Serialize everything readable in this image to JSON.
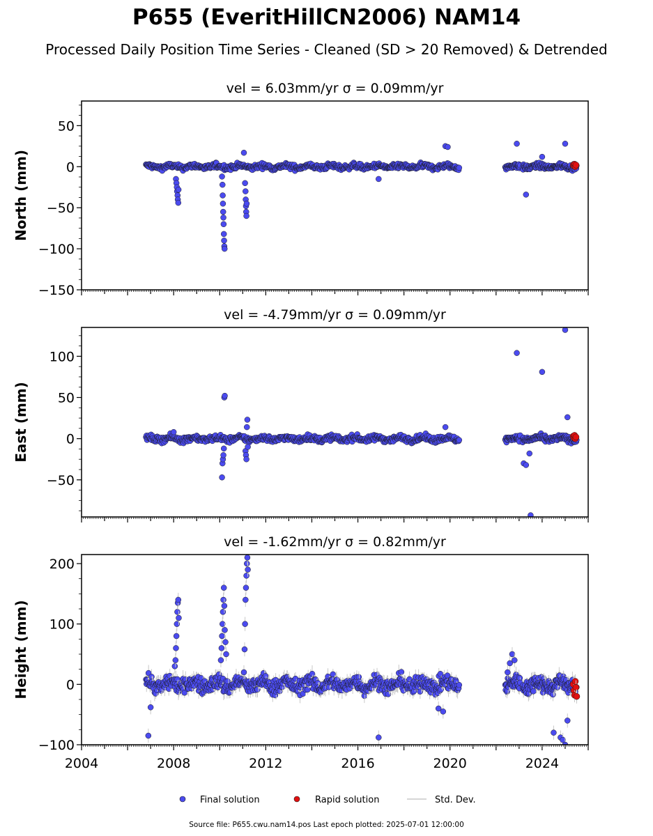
{
  "figure": {
    "title": "P655 (EveritHillCN2006) NAM14",
    "subtitle": "Processed Daily Position Time Series - Cleaned (SD > 20 Removed) & Detrended",
    "source_note": "Source file: P655.cwu.nam14.pos  Last epoch plotted: 2025-07-01 12:00:00",
    "legend": {
      "final": "Final solution",
      "rapid": "Rapid solution",
      "std": "Std. Dev."
    },
    "colors": {
      "final": "#4b4bef",
      "rapid": "#e01010",
      "std": "#c8c8c8",
      "edge": "#1a1a1a"
    }
  },
  "chart_data": [
    {
      "type": "scatter",
      "title": "vel = 6.03mm/yr   σ = 0.09mm/yr",
      "ylabel": "North (mm)",
      "xlim": [
        2004,
        2026
      ],
      "ylim": [
        -150,
        80
      ],
      "yticks": [
        50,
        0,
        -50,
        -100,
        -150
      ],
      "yticklabels": [
        "50",
        "0",
        "−50",
        "−100",
        "−150"
      ],
      "xticks": [
        2004,
        2008,
        2012,
        2016,
        2020,
        2024
      ],
      "xticklabels": [],
      "data_span": [
        2006.8,
        2020.4
      ],
      "data_span2": [
        2022.4,
        2025.5
      ],
      "noise": 2.2,
      "series": [
        {
          "name": "Final solution",
          "x": [
            2008.1,
            2008.12,
            2008.14,
            2008.15,
            2008.17,
            2008.18,
            2008.2,
            2008.21,
            2010.1,
            2010.12,
            2010.13,
            2010.14,
            2010.15,
            2010.16,
            2010.17,
            2010.18,
            2010.19,
            2010.2,
            2010.21,
            2011.1,
            2011.12,
            2011.13,
            2011.14,
            2011.15,
            2011.16,
            2011.17,
            2019.8,
            2019.9,
            2022.9,
            2023.3,
            2025.0,
            2016.9,
            2011.05,
            2024.0
          ],
          "y": [
            -15,
            -20,
            -25,
            -30,
            -35,
            -40,
            -44,
            -28,
            -12,
            -22,
            -35,
            -45,
            -55,
            -62,
            -70,
            -82,
            -90,
            -97,
            -100,
            -20,
            -30,
            -40,
            -48,
            -55,
            -60,
            -45,
            25,
            24,
            28,
            -34,
            28,
            -15,
            17,
            12
          ]
        },
        {
          "name": "Rapid solution",
          "x": [
            2025.35,
            2025.38,
            2025.41,
            2025.44,
            2025.47
          ],
          "y": [
            2,
            1,
            3,
            0,
            2
          ]
        }
      ]
    },
    {
      "type": "scatter",
      "title": "vel = -4.79mm/yr   σ = 0.09mm/yr",
      "ylabel": "East (mm)",
      "xlim": [
        2004,
        2026
      ],
      "ylim": [
        -95,
        135
      ],
      "yticks": [
        100,
        50,
        0,
        -50
      ],
      "yticklabels": [
        "100",
        "50",
        "0",
        "−50"
      ],
      "xticks": [
        2004,
        2008,
        2012,
        2016,
        2020,
        2024
      ],
      "xticklabels": [],
      "data_span": [
        2006.8,
        2020.4
      ],
      "data_span2": [
        2022.4,
        2025.5
      ],
      "noise": 2.5,
      "series": [
        {
          "name": "Final solution",
          "x": [
            2010.1,
            2010.12,
            2010.14,
            2010.16,
            2010.18,
            2010.2,
            2010.22,
            2011.12,
            2011.14,
            2011.16,
            2011.18,
            2011.2,
            2011.22,
            2022.9,
            2023.2,
            2023.3,
            2023.45,
            2023.5,
            2024.0,
            2025.0,
            2025.1,
            2019.8,
            2008.0
          ],
          "y": [
            -47,
            -30,
            -25,
            -20,
            -12,
            50,
            52,
            -15,
            -20,
            -25,
            14,
            23,
            -10,
            104,
            -30,
            -32,
            -18,
            -93,
            81,
            132,
            26,
            14,
            8
          ]
        },
        {
          "name": "Rapid solution",
          "x": [
            2025.35,
            2025.38,
            2025.41,
            2025.44,
            2025.47
          ],
          "y": [
            3,
            1,
            4,
            0,
            2
          ]
        }
      ]
    },
    {
      "type": "scatter",
      "title": "vel = -1.62mm/yr   σ = 0.82mm/yr",
      "ylabel": "Height (mm)",
      "xlim": [
        2004,
        2026
      ],
      "ylim": [
        -100,
        215
      ],
      "yticks": [
        200,
        100,
        0,
        -100
      ],
      "yticklabels": [
        "200",
        "100",
        "0",
        "−100"
      ],
      "xticks": [
        2004,
        2008,
        2012,
        2016,
        2020,
        2024
      ],
      "xticklabels": [
        "2004",
        "2008",
        "2012",
        "2016",
        "2020",
        "2024"
      ],
      "data_span": [
        2006.8,
        2020.4
      ],
      "data_span2": [
        2022.4,
        2025.5
      ],
      "noise": 9,
      "series": [
        {
          "name": "Final solution",
          "x": [
            2006.9,
            2007.0,
            2008.05,
            2008.08,
            2008.1,
            2008.12,
            2008.14,
            2008.16,
            2008.18,
            2008.2,
            2008.22,
            2010.05,
            2010.08,
            2010.1,
            2010.12,
            2010.14,
            2010.16,
            2010.18,
            2010.2,
            2010.22,
            2010.25,
            2010.28,
            2011.05,
            2011.08,
            2011.1,
            2011.12,
            2011.14,
            2011.16,
            2011.18,
            2011.2,
            2011.22,
            2016.9,
            2022.5,
            2022.6,
            2022.7,
            2022.8,
            2024.5,
            2024.8,
            2024.9,
            2025.0,
            2025.1,
            2019.5,
            2019.7
          ],
          "y": [
            -85,
            -38,
            30,
            40,
            60,
            80,
            100,
            120,
            135,
            140,
            110,
            40,
            60,
            80,
            100,
            120,
            140,
            160,
            130,
            90,
            70,
            50,
            20,
            58,
            100,
            140,
            160,
            180,
            200,
            210,
            190,
            -88,
            20,
            35,
            50,
            40,
            -80,
            -88,
            -92,
            -100,
            -60,
            -40,
            -45
          ]
        },
        {
          "name": "Rapid solution",
          "x": [
            2025.35,
            2025.38,
            2025.41,
            2025.44,
            2025.47,
            2025.5
          ],
          "y": [
            0,
            -10,
            -18,
            5,
            -5,
            -20
          ]
        }
      ]
    }
  ]
}
